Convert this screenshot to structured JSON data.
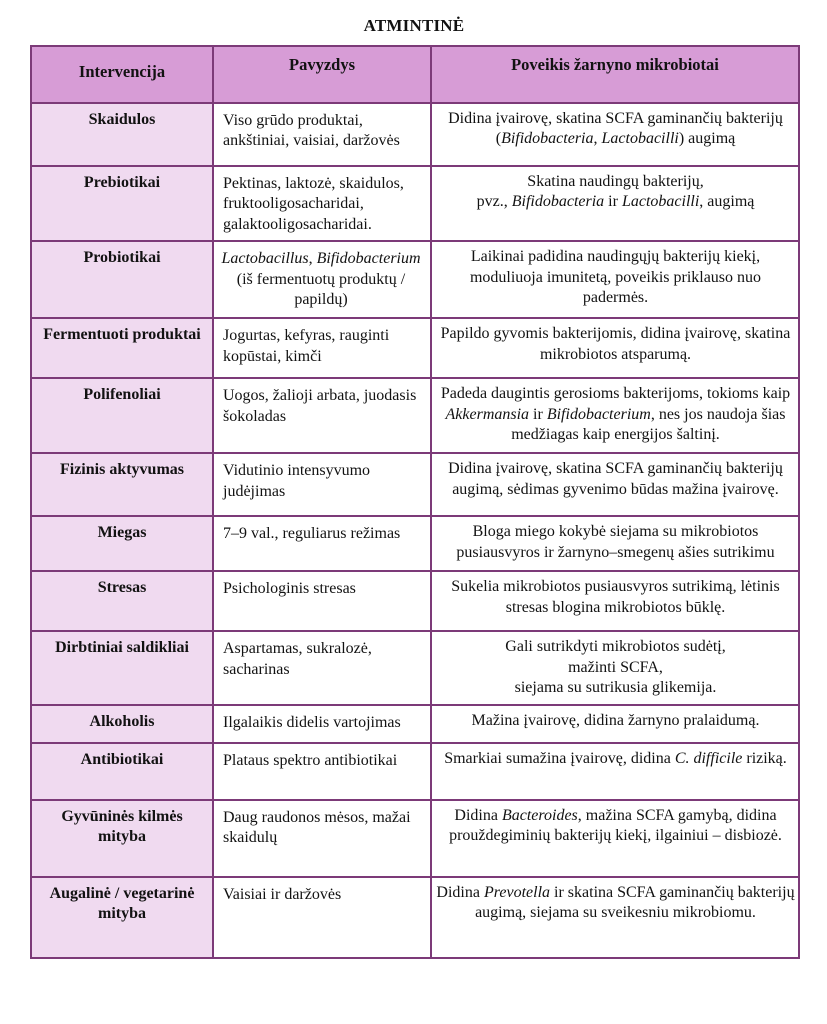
{
  "title": "ATMINTINĖ",
  "colors": {
    "border": "#7c3a78",
    "header_bg": "#d79cd6",
    "first_column_bg": "#f0daf0"
  },
  "table": {
    "headers": {
      "intervention": "Intervencija",
      "example": "Pavyzdys",
      "effect": "Poveikis žarnyno mikrobiotai"
    },
    "rows": [
      {
        "intervention": "Skaidulos",
        "example": [
          {
            "t": "Viso grūdo produktai, ankštiniai, vaisiai, daržovės"
          }
        ],
        "effect": [
          {
            "t": "Didina įvairovę, skatina SCFA gaminančių bakterijų ("
          },
          {
            "t": "Bifidobacteria",
            "i": true
          },
          {
            "t": ", "
          },
          {
            "t": "Lactobacilli",
            "i": true
          },
          {
            "t": ") augimą"
          }
        ]
      },
      {
        "intervention": "Prebiotikai",
        "example": [
          {
            "t": "Pektinas, laktozė, skaidulos, fruktooligosacharidai, galaktooligosacharidai."
          }
        ],
        "effect": [
          {
            "t": "Skatina naudingų bakterijų,"
          },
          {
            "br": true
          },
          {
            "t": "pvz., "
          },
          {
            "t": "Bifidobacteria",
            "i": true
          },
          {
            "t": " ir "
          },
          {
            "t": "Lactobacilli",
            "i": true
          },
          {
            "t": ", augimą"
          }
        ]
      },
      {
        "intervention": "Probiotikai",
        "example": [
          {
            "t": "Lactobacillus",
            "i": true
          },
          {
            "t": ", "
          },
          {
            "t": "Bifidobacterium",
            "i": true
          },
          {
            "t": " (iš fermentuotų produktų / papildų)"
          }
        ],
        "effect": [
          {
            "t": "Laikinai padidina naudingųjų bakterijų kiekį, moduliuoja imunitetą, poveikis priklauso nuo padermės."
          }
        ]
      },
      {
        "intervention": "Fermentuoti produktai",
        "example": [
          {
            "t": "Jogurtas, kefyras, rauginti kopūstai, kimči"
          }
        ],
        "effect": [
          {
            "t": "Papildo gyvomis bakterijomis, didina įvairovę, skatina mikrobiotos atsparumą."
          }
        ]
      },
      {
        "intervention": "Polifenoliai",
        "example": [
          {
            "t": "Uogos, žalioji arbata, juodasis šokoladas"
          }
        ],
        "effect": [
          {
            "t": "Padeda daugintis gerosioms bakterijoms, tokioms kaip "
          },
          {
            "t": "Akkermansia",
            "i": true
          },
          {
            "t": " ir "
          },
          {
            "t": "Bifidobacterium",
            "i": true
          },
          {
            "t": ", nes jos naudoja šias medžiagas kaip energijos šaltinį."
          }
        ]
      },
      {
        "intervention": "Fizinis aktyvumas",
        "example": [
          {
            "t": "Vidutinio intensyvumo judėjimas"
          }
        ],
        "effect": [
          {
            "t": "Didina įvairovę, skatina SCFA gaminančių bakterijų augimą, sėdimas gyvenimo būdas mažina įvairovę."
          }
        ]
      },
      {
        "intervention": "Miegas",
        "example": [
          {
            "t": "7–9 val., reguliarus režimas"
          }
        ],
        "effect": [
          {
            "t": "Bloga miego kokybė siejama su mikrobiotos pusiausvyros ir žarnyno–smegenų ašies sutrikimu"
          }
        ]
      },
      {
        "intervention": "Stresas",
        "example": [
          {
            "t": "Psichologinis stresas"
          }
        ],
        "effect": [
          {
            "t": "Sukelia mikrobiotos pusiausvyros sutrikimą, lėtinis stresas blogina mikrobiotos būklę."
          }
        ]
      },
      {
        "intervention": "Dirbtiniai saldikliai",
        "example": [
          {
            "t": "Aspartamas, sukralozė, sacharinas"
          }
        ],
        "effect": [
          {
            "t": "Gali sutrikdyti mikrobiotos sudėtį,"
          },
          {
            "br": true
          },
          {
            "t": "mažinti SCFA,"
          },
          {
            "br": true
          },
          {
            "t": "siejama su sutrikusia glikemija."
          }
        ]
      },
      {
        "intervention": "Alkoholis",
        "example": [
          {
            "t": "Ilgalaikis didelis vartojimas"
          }
        ],
        "effect": [
          {
            "t": "Mažina įvairovę, didina žarnyno pralaidumą."
          }
        ]
      },
      {
        "intervention": "Antibiotikai",
        "example": [
          {
            "t": "Plataus spektro antibiotikai"
          }
        ],
        "effect": [
          {
            "t": "Smarkiai sumažina įvairovę, didina "
          },
          {
            "t": "C. difficile",
            "i": true
          },
          {
            "t": " riziką."
          }
        ]
      },
      {
        "intervention": "Gyvūninės kilmės mityba",
        "example": [
          {
            "t": "Daug raudonos mėsos, mažai skaidulų"
          }
        ],
        "effect": [
          {
            "t": "Didina "
          },
          {
            "t": "Bacteroides",
            "i": true
          },
          {
            "t": ", mažina SCFA gamybą, didina prouždegiminių bakterijų kiekį, ilgainiui – disbiozė."
          }
        ]
      },
      {
        "intervention": "Augalinė / vegetarinė mityba",
        "example": [
          {
            "t": "Vaisiai ir daržovės"
          }
        ],
        "effect": [
          {
            "t": "Didina "
          },
          {
            "t": "Prevotella",
            "i": true
          },
          {
            "t": " ir skatina SCFA gaminančių bakterijų augimą, siejama su sveikesniu mikrobiomu."
          }
        ]
      }
    ]
  }
}
